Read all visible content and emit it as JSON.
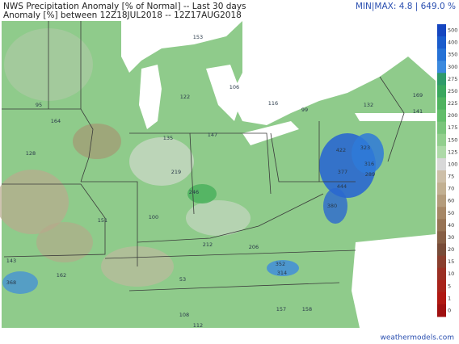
{
  "header": {
    "title": "NWS Precipitation Anomaly [% of Normal] -- Last 30 days",
    "subtitle": "Anomaly [%] between 12Z18JUL2018 -- 12Z17AUG2018",
    "minmax": "MIN|MAX: 4.8 | 649.0 %"
  },
  "colorbar": {
    "levels": [
      {
        "label": "500",
        "color": "#1546c0"
      },
      {
        "label": "400",
        "color": "#1a5ccc"
      },
      {
        "label": "350",
        "color": "#2672d6"
      },
      {
        "label": "300",
        "color": "#3c8ade"
      },
      {
        "label": "275",
        "color": "#2f9a6a"
      },
      {
        "label": "250",
        "color": "#3aa75e"
      },
      {
        "label": "225",
        "color": "#4fb35f"
      },
      {
        "label": "200",
        "color": "#62bd6a"
      },
      {
        "label": "175",
        "color": "#7ac57c"
      },
      {
        "label": "150",
        "color": "#92cf8e"
      },
      {
        "label": "125",
        "color": "#aedaa8"
      },
      {
        "label": "100",
        "color": "#d8d8d8"
      },
      {
        "label": "75",
        "color": "#cdbfa8"
      },
      {
        "label": "70",
        "color": "#c2b092"
      },
      {
        "label": "60",
        "color": "#b49c7c"
      },
      {
        "label": "50",
        "color": "#a68766"
      },
      {
        "label": "40",
        "color": "#977354"
      },
      {
        "label": "30",
        "color": "#875f45"
      },
      {
        "label": "20",
        "color": "#784c38"
      },
      {
        "label": "15",
        "color": "#8a3f2e"
      },
      {
        "label": "10",
        "color": "#9a3024"
      },
      {
        "label": "5",
        "color": "#a8231a"
      },
      {
        "label": "1",
        "color": "#b01812"
      },
      {
        "label": "0",
        "color": "#a01010"
      }
    ]
  },
  "stations": [
    "422",
    "323",
    "377",
    "316",
    "380",
    "444",
    "289",
    "352",
    "314",
    "368",
    "246",
    "219",
    "135",
    "147",
    "153",
    "122",
    "106",
    "141",
    "169",
    "132",
    "99",
    "116",
    "100",
    "212",
    "206",
    "157",
    "158",
    "108",
    "112",
    "95",
    "164",
    "128",
    "151",
    "143",
    "162",
    "53"
  ],
  "footer": {
    "site": "weathermodels.com"
  }
}
